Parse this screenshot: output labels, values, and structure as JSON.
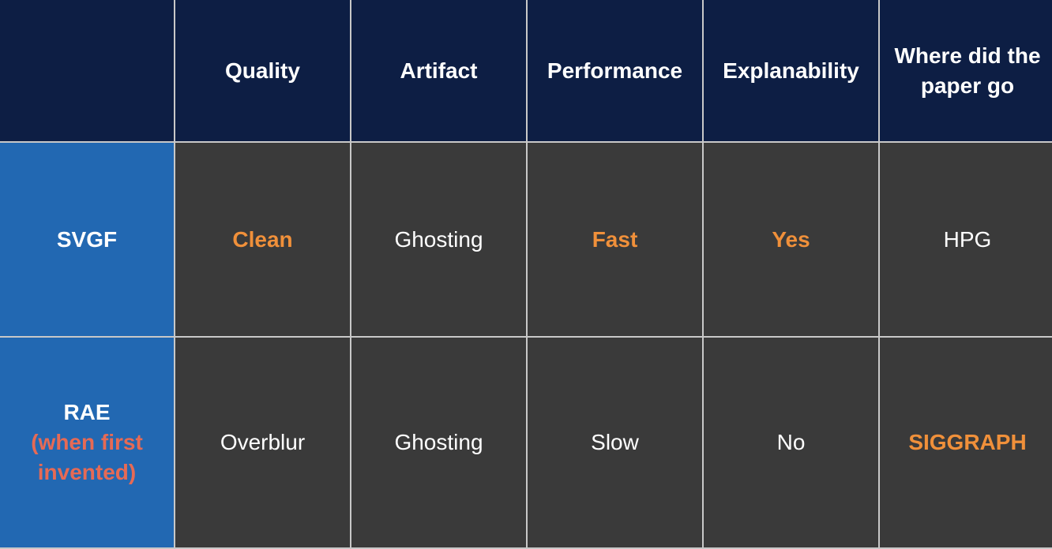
{
  "colors": {
    "header_bg": "#0d1e44",
    "row_header_bg": "#2268b2",
    "cell_bg": "#3a3a3a",
    "grid_line": "#c8c8c8",
    "text": "#ffffff",
    "highlight": "#f0903a",
    "row_subtitle": "#e66a55"
  },
  "table": {
    "headers": [
      "",
      "Quality",
      "Artifact",
      "Performance",
      "Explanability",
      "Where did the paper go"
    ],
    "rows": [
      {
        "label": "SVGF",
        "sublabel": "",
        "cells": [
          {
            "text": "Clean",
            "highlight": true
          },
          {
            "text": "Ghosting",
            "highlight": false
          },
          {
            "text": "Fast",
            "highlight": true
          },
          {
            "text": "Yes",
            "highlight": true
          },
          {
            "text": "HPG",
            "highlight": false
          }
        ]
      },
      {
        "label": "RAE",
        "sublabel": "(when first invented)",
        "cells": [
          {
            "text": "Overblur",
            "highlight": false
          },
          {
            "text": "Ghosting",
            "highlight": false
          },
          {
            "text": "Slow",
            "highlight": false
          },
          {
            "text": "No",
            "highlight": false
          },
          {
            "text": "SIGGRAPH",
            "highlight": true
          }
        ]
      }
    ]
  }
}
